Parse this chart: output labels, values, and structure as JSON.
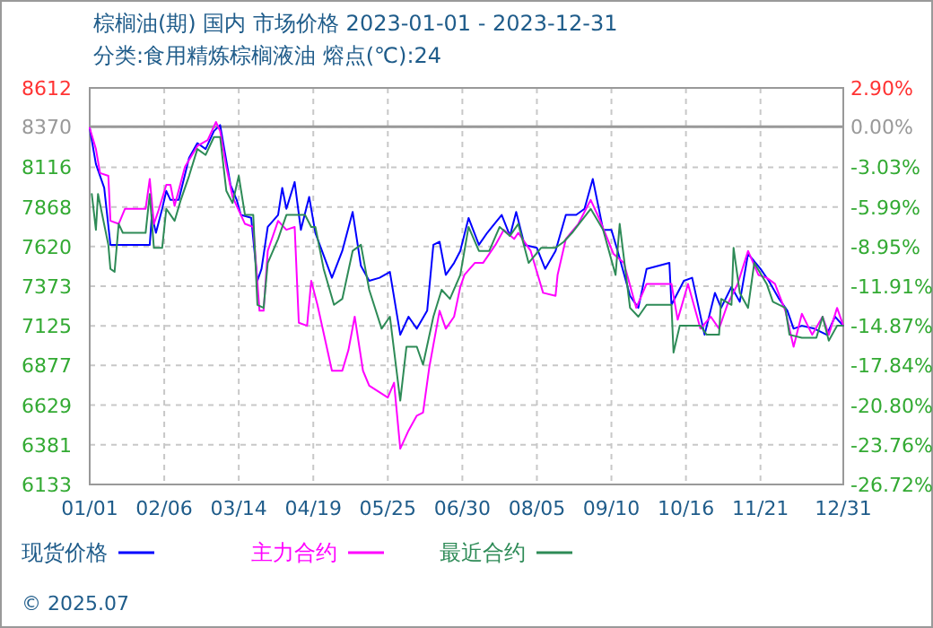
{
  "chart_data": {
    "type": "line",
    "title": "棕榈油(期) 国内 市场价格 2023-01-01 - 2023-12-31",
    "subtitle": "分类:食用精炼棕榈液油 熔点(℃):24",
    "xlim": [
      "2023-01-01",
      "2023-12-31"
    ],
    "xticks": [
      {
        "value": "2023-01-01",
        "label": "01/01"
      },
      {
        "value": "2023-02-06",
        "label": "02/06"
      },
      {
        "value": "2023-03-14",
        "label": "03/14"
      },
      {
        "value": "2023-04-19",
        "label": "04/19"
      },
      {
        "value": "2023-05-25",
        "label": "05/25"
      },
      {
        "value": "2023-06-30",
        "label": "06/30"
      },
      {
        "value": "2023-08-05",
        "label": "08/05"
      },
      {
        "value": "2023-09-10",
        "label": "09/10"
      },
      {
        "value": "2023-10-16",
        "label": "10/16"
      },
      {
        "value": "2023-11-21",
        "label": "11/21"
      },
      {
        "value": "2023-12-31",
        "label": "12/31"
      }
    ],
    "ylim": [
      6133,
      8612
    ],
    "yticks": [
      6133,
      6381,
      6629,
      6877,
      7125,
      7373,
      7620,
      7868,
      8116,
      8370,
      8612
    ],
    "y2lim": [
      -26.72,
      2.9
    ],
    "y2ticks": [
      {
        "value": -26.72,
        "label": "-26.72%"
      },
      {
        "value": -23.76,
        "label": "-23.76%"
      },
      {
        "value": -20.8,
        "label": "-20.80%"
      },
      {
        "value": -17.84,
        "label": "-17.84%"
      },
      {
        "value": -14.87,
        "label": "-14.87%"
      },
      {
        "value": -11.91,
        "label": "-11.91%"
      },
      {
        "value": -8.95,
        "label": "-8.95%"
      },
      {
        "value": -5.99,
        "label": "-5.99%"
      },
      {
        "value": -3.03,
        "label": "-3.03%"
      },
      {
        "value": 0,
        "label": "0.00%"
      },
      {
        "value": 2.9,
        "label": "2.90%"
      }
    ],
    "ref_lines": [
      {
        "axis": "y2",
        "value": 0,
        "color": "#999999"
      }
    ],
    "grid": true,
    "legend": "bottom",
    "annotations": [
      "© 2025.07"
    ],
    "series": [
      {
        "name": "现货价格",
        "color": "#0000ff",
        "x": [
          "2023-01-01",
          "2023-01-04",
          "2023-01-08",
          "2023-01-11",
          "2023-01-30",
          "2023-01-31",
          "2023-02-02",
          "2023-02-05",
          "2023-02-07",
          "2023-02-09",
          "2023-02-13",
          "2023-02-18",
          "2023-02-22",
          "2023-02-26",
          "2023-03-02",
          "2023-03-05",
          "2023-03-07",
          "2023-03-10",
          "2023-03-13",
          "2023-03-15",
          "2023-03-20",
          "2023-03-23",
          "2023-03-25",
          "2023-03-28",
          "2023-04-02",
          "2023-04-04",
          "2023-04-06",
          "2023-04-10",
          "2023-04-13",
          "2023-04-17",
          "2023-04-20",
          "2023-04-28",
          "2023-05-03",
          "2023-05-08",
          "2023-05-12",
          "2023-05-16",
          "2023-05-21",
          "2023-05-26",
          "2023-05-31",
          "2023-06-04",
          "2023-06-08",
          "2023-06-13",
          "2023-06-16",
          "2023-06-19",
          "2023-06-22",
          "2023-06-26",
          "2023-06-29",
          "2023-07-03",
          "2023-07-08",
          "2023-07-12",
          "2023-07-19",
          "2023-07-23",
          "2023-07-26",
          "2023-07-30",
          "2023-08-05",
          "2023-08-09",
          "2023-08-14",
          "2023-08-19",
          "2023-08-24",
          "2023-08-28",
          "2023-09-01",
          "2023-09-06",
          "2023-09-10",
          "2023-09-13",
          "2023-09-19",
          "2023-09-23",
          "2023-09-27",
          "2023-10-08",
          "2023-10-09",
          "2023-10-15",
          "2023-10-19",
          "2023-10-25",
          "2023-10-30",
          "2023-11-02",
          "2023-11-07",
          "2023-11-11",
          "2023-11-15",
          "2023-11-21",
          "2023-11-25",
          "2023-11-30",
          "2023-12-04",
          "2023-12-07",
          "2023-12-11",
          "2023-12-17",
          "2023-12-23",
          "2023-12-27",
          "2023-12-31"
        ],
        "values": [
          8361,
          8136,
          7987,
          7631,
          7631,
          7818,
          7706,
          7856,
          7968,
          7912,
          7912,
          8174,
          8267,
          8230,
          8342,
          8380,
          8230,
          8006,
          7912,
          7818,
          7800,
          7406,
          7481,
          7743,
          7818,
          7987,
          7856,
          8024,
          7725,
          7931,
          7706,
          7425,
          7593,
          7837,
          7500,
          7406,
          7425,
          7462,
          7069,
          7182,
          7107,
          7219,
          7631,
          7650,
          7443,
          7518,
          7593,
          7799,
          7631,
          7706,
          7818,
          7687,
          7837,
          7631,
          7612,
          7481,
          7593,
          7818,
          7818,
          7856,
          8043,
          7725,
          7725,
          7593,
          7312,
          7237,
          7481,
          7518,
          7256,
          7406,
          7425,
          7069,
          7331,
          7237,
          7368,
          7275,
          7575,
          7481,
          7406,
          7293,
          7219,
          7107,
          7125,
          7107,
          7069,
          7182,
          7125
        ]
      },
      {
        "name": "主力合约",
        "color": "#ff00ff",
        "x": [
          "2023-01-01",
          "2023-01-04",
          "2023-01-06",
          "2023-01-10",
          "2023-01-11",
          "2023-01-15",
          "2023-01-18",
          "2023-01-28",
          "2023-01-30",
          "2023-02-01",
          "2023-02-03",
          "2023-02-07",
          "2023-02-09",
          "2023-02-11",
          "2023-02-16",
          "2023-02-22",
          "2023-02-27",
          "2023-03-03",
          "2023-03-05",
          "2023-03-08",
          "2023-03-11",
          "2023-03-17",
          "2023-03-21",
          "2023-03-24",
          "2023-03-26",
          "2023-03-28",
          "2023-04-02",
          "2023-04-06",
          "2023-04-10",
          "2023-04-12",
          "2023-04-16",
          "2023-04-18",
          "2023-04-21",
          "2023-04-28",
          "2023-05-03",
          "2023-05-06",
          "2023-05-09",
          "2023-05-13",
          "2023-05-16",
          "2023-05-25",
          "2023-05-28",
          "2023-05-31",
          "2023-06-04",
          "2023-06-08",
          "2023-06-11",
          "2023-06-14",
          "2023-06-19",
          "2023-06-22",
          "2023-06-26",
          "2023-06-29",
          "2023-07-01",
          "2023-07-06",
          "2023-07-10",
          "2023-07-16",
          "2023-07-20",
          "2023-07-25",
          "2023-07-27",
          "2023-08-02",
          "2023-08-08",
          "2023-08-14",
          "2023-08-15",
          "2023-08-19",
          "2023-08-25",
          "2023-08-31",
          "2023-09-04",
          "2023-09-11",
          "2023-09-16",
          "2023-09-22",
          "2023-09-27",
          "2023-10-09",
          "2023-10-12",
          "2023-10-17",
          "2023-10-23",
          "2023-10-28",
          "2023-11-01",
          "2023-11-05",
          "2023-11-10",
          "2023-11-15",
          "2023-11-20",
          "2023-11-24",
          "2023-11-28",
          "2023-12-03",
          "2023-12-07",
          "2023-12-11",
          "2023-12-16",
          "2023-12-21",
          "2023-12-24",
          "2023-12-28",
          "2023-12-31"
        ],
        "values": [
          8361,
          8230,
          8080,
          8062,
          7781,
          7762,
          7856,
          7856,
          8043,
          7762,
          7837,
          8006,
          8006,
          7874,
          8118,
          8249,
          8286,
          8399,
          8342,
          8118,
          7931,
          7762,
          7743,
          7219,
          7219,
          7593,
          7781,
          7725,
          7743,
          7144,
          7125,
          7406,
          7256,
          6844,
          6844,
          6975,
          7182,
          6844,
          6751,
          6676,
          6769,
          6357,
          6470,
          6563,
          6582,
          6863,
          7219,
          7107,
          7182,
          7368,
          7443,
          7518,
          7518,
          7631,
          7725,
          7668,
          7706,
          7593,
          7331,
          7312,
          7443,
          7668,
          7762,
          7912,
          7799,
          7575,
          7518,
          7237,
          7387,
          7387,
          7163,
          7387,
          7107,
          7182,
          7107,
          7256,
          7387,
          7593,
          7443,
          7425,
          7387,
          7219,
          6994,
          7200,
          7069,
          7182,
          7069,
          7237,
          7125
        ]
      },
      {
        "name": "最近合约",
        "color": "#2e8b57",
        "x": [
          "2023-01-02",
          "2023-01-04",
          "2023-01-05",
          "2023-01-10",
          "2023-01-11",
          "2023-01-13",
          "2023-01-15",
          "2023-01-17",
          "2023-01-28",
          "2023-01-30",
          "2023-02-01",
          "2023-02-05",
          "2023-02-07",
          "2023-02-11",
          "2023-02-14",
          "2023-02-18",
          "2023-02-22",
          "2023-02-26",
          "2023-03-02",
          "2023-03-05",
          "2023-03-08",
          "2023-03-11",
          "2023-03-14",
          "2023-03-17",
          "2023-03-21",
          "2023-03-23",
          "2023-03-26",
          "2023-03-28",
          "2023-04-02",
          "2023-04-06",
          "2023-04-15",
          "2023-04-18",
          "2023-04-20",
          "2023-04-24",
          "2023-04-29",
          "2023-05-03",
          "2023-05-08",
          "2023-05-12",
          "2023-05-16",
          "2023-05-22",
          "2023-05-26",
          "2023-05-31",
          "2023-06-03",
          "2023-06-08",
          "2023-06-11",
          "2023-06-16",
          "2023-06-20",
          "2023-06-24",
          "2023-06-29",
          "2023-07-03",
          "2023-07-08",
          "2023-07-13",
          "2023-07-18",
          "2023-07-23",
          "2023-07-27",
          "2023-08-01",
          "2023-08-07",
          "2023-08-14",
          "2023-08-18",
          "2023-08-22",
          "2023-08-31",
          "2023-09-06",
          "2023-09-12",
          "2023-09-14",
          "2023-09-19",
          "2023-09-23",
          "2023-09-27",
          "2023-10-09",
          "2023-10-10",
          "2023-10-13",
          "2023-10-23",
          "2023-10-26",
          "2023-11-01",
          "2023-11-02",
          "2023-11-07",
          "2023-11-08",
          "2023-11-11",
          "2023-11-15",
          "2023-11-18",
          "2023-11-24",
          "2023-11-27",
          "2023-12-03",
          "2023-12-05",
          "2023-12-11",
          "2023-12-18",
          "2023-12-21",
          "2023-12-24",
          "2023-12-28",
          "2023-12-31"
        ],
        "values": [
          7949,
          7725,
          7949,
          7631,
          7481,
          7462,
          7762,
          7706,
          7706,
          7949,
          7612,
          7612,
          7856,
          7781,
          7912,
          8062,
          8230,
          8193,
          8305,
          8305,
          7968,
          7893,
          8062,
          7818,
          7818,
          7256,
          7237,
          7518,
          7668,
          7818,
          7818,
          7743,
          7743,
          7481,
          7256,
          7293,
          7593,
          7631,
          7350,
          7107,
          7182,
          6657,
          6994,
          6994,
          6882,
          7182,
          7350,
          7293,
          7443,
          7743,
          7593,
          7593,
          7743,
          7687,
          7762,
          7518,
          7612,
          7612,
          7650,
          7706,
          7856,
          7725,
          7443,
          7762,
          7237,
          7182,
          7256,
          7256,
          6957,
          7125,
          7125,
          7069,
          7069,
          7293,
          7256,
          7612,
          7331,
          7237,
          7518,
          7387,
          7275,
          7237,
          7069,
          7050,
          7050,
          7182,
          7032,
          7125,
          7125
        ]
      }
    ]
  }
}
